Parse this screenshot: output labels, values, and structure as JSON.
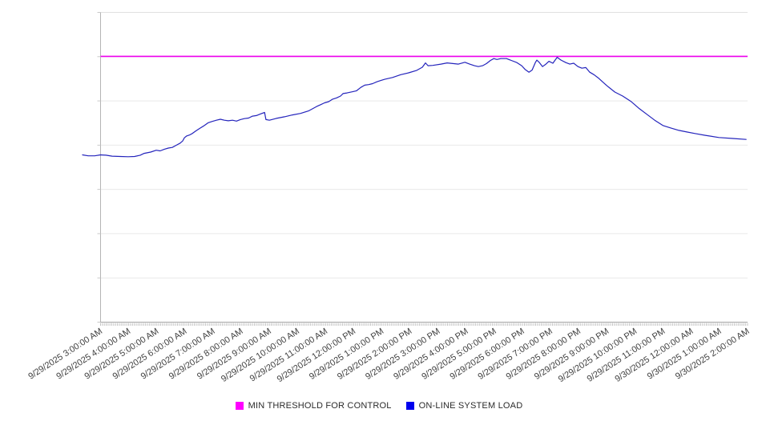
{
  "page": {
    "background_color": "#ffffff"
  },
  "legend": {
    "items": [
      {
        "label": "MIN THRESHOLD FOR CONTROL",
        "color": "#ff00ff"
      },
      {
        "label": "ON-LINE SYSTEM LOAD",
        "color": "#0000ee"
      }
    ]
  },
  "chart_data": {
    "type": "line",
    "title": "",
    "xlabel": "",
    "ylabel": "",
    "legend_position": "bottom-center",
    "grid": "horizontal-only",
    "x_axis": {
      "labels": [
        "9/29/2025 3:00:00 AM",
        "9/29/2025 4:00:00 AM",
        "9/29/2025 5:00:00 AM",
        "9/29/2025 6:00:00 AM",
        "9/29/2025 7:00:00 AM",
        "9/29/2025 8:00:00 AM",
        "9/29/2025 9:00:00 AM",
        "9/29/2025 10:00:00 AM",
        "9/29/2025 11:00:00 AM",
        "9/29/2025 12:00:00 PM",
        "9/29/2025 1:00:00 PM",
        "9/29/2025 2:00:00 PM",
        "9/29/2025 3:00:00 PM",
        "9/29/2025 4:00:00 PM",
        "9/29/2025 5:00:00 PM",
        "9/29/2025 6:00:00 PM",
        "9/29/2025 7:00:00 PM",
        "9/29/2025 8:00:00 PM",
        "9/29/2025 9:00:00 PM",
        "9/29/2025 10:00:00 PM",
        "9/29/2025 11:00:00 PM",
        "9/30/2025 12:00:00 AM",
        "9/30/2025 1:00:00 AM",
        "9/30/2025 2:00:00 AM"
      ],
      "minor_ticks_per_hour": 15,
      "label_rotation_deg": -33
    },
    "y_axis": {
      "tick_labels_visible": false,
      "gridline_intervals": 7,
      "units_note": "no numeric y labels shown; values below are percent of plot height above the x-axis"
    },
    "series": [
      {
        "name": "MIN THRESHOLD FOR CONTROL",
        "type": "horizontal_threshold",
        "color": "#ee00ee",
        "value_pct": 85.8
      },
      {
        "name": "ON-LINE SYSTEM LOAD",
        "type": "line",
        "color": "#2424bc",
        "x_unit": "hours_after_first_label",
        "points": [
          [
            -0.64,
            54.0
          ],
          [
            -0.44,
            53.7
          ],
          [
            -0.21,
            53.7
          ],
          [
            0,
            54.0
          ],
          [
            0.19,
            53.9
          ],
          [
            0.41,
            53.6
          ],
          [
            0.7,
            53.5
          ],
          [
            0.98,
            53.4
          ],
          [
            1.21,
            53.5
          ],
          [
            1.41,
            53.9
          ],
          [
            1.55,
            54.5
          ],
          [
            1.78,
            54.9
          ],
          [
            1.98,
            55.5
          ],
          [
            2.12,
            55.3
          ],
          [
            2.26,
            55.8
          ],
          [
            2.41,
            56.2
          ],
          [
            2.55,
            56.4
          ],
          [
            2.69,
            57.1
          ],
          [
            2.83,
            57.8
          ],
          [
            2.92,
            58.5
          ],
          [
            2.98,
            59.5
          ],
          [
            3.06,
            60.1
          ],
          [
            3.18,
            60.5
          ],
          [
            3.26,
            60.9
          ],
          [
            3.4,
            61.8
          ],
          [
            3.55,
            62.7
          ],
          [
            3.69,
            63.5
          ],
          [
            3.83,
            64.4
          ],
          [
            3.97,
            64.8
          ],
          [
            4.12,
            65.2
          ],
          [
            4.26,
            65.5
          ],
          [
            4.4,
            65.2
          ],
          [
            4.54,
            65.0
          ],
          [
            4.69,
            65.2
          ],
          [
            4.83,
            64.9
          ],
          [
            4.97,
            65.4
          ],
          [
            5.11,
            65.7
          ],
          [
            5.26,
            65.9
          ],
          [
            5.4,
            66.5
          ],
          [
            5.54,
            66.7
          ],
          [
            5.68,
            67.2
          ],
          [
            5.83,
            67.7
          ],
          [
            5.88,
            65.4
          ],
          [
            6.0,
            65.2
          ],
          [
            6.25,
            65.8
          ],
          [
            6.54,
            66.3
          ],
          [
            6.82,
            66.9
          ],
          [
            7.11,
            67.4
          ],
          [
            7.39,
            68.2
          ],
          [
            7.68,
            69.6
          ],
          [
            7.82,
            70.2
          ],
          [
            7.96,
            70.8
          ],
          [
            8.11,
            71.2
          ],
          [
            8.25,
            72.0
          ],
          [
            8.39,
            72.4
          ],
          [
            8.53,
            73.0
          ],
          [
            8.62,
            73.8
          ],
          [
            8.76,
            74.0
          ],
          [
            8.96,
            74.4
          ],
          [
            9.1,
            74.7
          ],
          [
            9.25,
            75.8
          ],
          [
            9.39,
            76.5
          ],
          [
            9.53,
            76.7
          ],
          [
            9.67,
            77.0
          ],
          [
            9.82,
            77.6
          ],
          [
            9.96,
            78.0
          ],
          [
            10.1,
            78.4
          ],
          [
            10.38,
            79.0
          ],
          [
            10.67,
            79.9
          ],
          [
            10.95,
            80.5
          ],
          [
            11.24,
            81.3
          ],
          [
            11.44,
            82.3
          ],
          [
            11.55,
            83.7
          ],
          [
            11.64,
            82.8
          ],
          [
            11.81,
            82.9
          ],
          [
            12.1,
            83.3
          ],
          [
            12.32,
            83.7
          ],
          [
            12.52,
            83.5
          ],
          [
            12.72,
            83.3
          ],
          [
            12.95,
            83.9
          ],
          [
            13.12,
            83.3
          ],
          [
            13.29,
            82.8
          ],
          [
            13.43,
            82.5
          ],
          [
            13.58,
            82.8
          ],
          [
            13.72,
            83.5
          ],
          [
            13.86,
            84.5
          ],
          [
            13.98,
            85.1
          ],
          [
            14.09,
            84.8
          ],
          [
            14.23,
            85.1
          ],
          [
            14.43,
            85.1
          ],
          [
            14.6,
            84.5
          ],
          [
            14.8,
            83.8
          ],
          [
            14.97,
            82.8
          ],
          [
            15.09,
            81.6
          ],
          [
            15.23,
            80.7
          ],
          [
            15.34,
            81.4
          ],
          [
            15.46,
            83.9
          ],
          [
            15.51,
            84.6
          ],
          [
            15.6,
            83.8
          ],
          [
            15.71,
            82.5
          ],
          [
            15.83,
            83.3
          ],
          [
            15.94,
            84.2
          ],
          [
            16.08,
            83.6
          ],
          [
            16.23,
            85.5
          ],
          [
            16.37,
            84.6
          ],
          [
            16.54,
            83.8
          ],
          [
            16.68,
            83.3
          ],
          [
            16.82,
            83.6
          ],
          [
            16.97,
            82.5
          ],
          [
            17.11,
            82.0
          ],
          [
            17.25,
            82.2
          ],
          [
            17.39,
            80.7
          ],
          [
            17.54,
            79.9
          ],
          [
            17.71,
            78.7
          ],
          [
            17.99,
            76.4
          ],
          [
            18.28,
            74.3
          ],
          [
            18.56,
            73.0
          ],
          [
            18.85,
            71.3
          ],
          [
            19.13,
            69.1
          ],
          [
            19.42,
            67.1
          ],
          [
            19.7,
            65.2
          ],
          [
            19.99,
            63.5
          ],
          [
            20.27,
            62.7
          ],
          [
            20.56,
            61.9
          ],
          [
            20.84,
            61.4
          ],
          [
            21.13,
            60.9
          ],
          [
            21.5,
            60.3
          ],
          [
            21.98,
            59.6
          ],
          [
            22.47,
            59.3
          ],
          [
            22.95,
            59.0
          ]
        ]
      }
    ]
  }
}
